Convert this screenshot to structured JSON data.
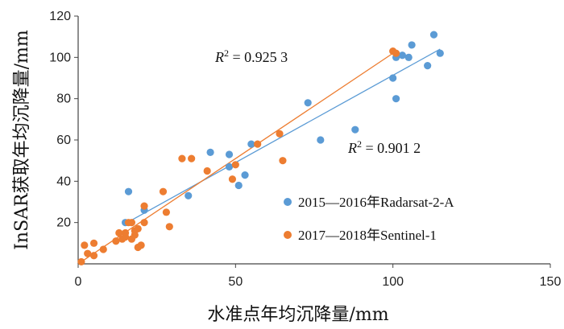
{
  "chart_data": {
    "type": "scatter",
    "xlabel": "水准点年均沉降量/mm",
    "ylabel": "InSAR获取年均沉降量/mm",
    "xlim": [
      0,
      150
    ],
    "ylim": [
      0,
      120
    ],
    "xticks": [
      "0",
      "50",
      "100",
      "150"
    ],
    "yticks": [
      "20",
      "40",
      "60",
      "80",
      "100",
      "120"
    ],
    "grid": false,
    "legend_position": "bottom-right",
    "series": [
      {
        "name": "2015—2016年Radarsat-2-A",
        "color": "#5b9bd5",
        "r2_label": "R² = 0.901 2",
        "trendline": [
          [
            15,
            19.5
          ],
          [
            115,
            104
          ]
        ],
        "points": [
          [
            15,
            20
          ],
          [
            16,
            35
          ],
          [
            21,
            26
          ],
          [
            35,
            33
          ],
          [
            42,
            54
          ],
          [
            48,
            47
          ],
          [
            48,
            53
          ],
          [
            51,
            38
          ],
          [
            53,
            43
          ],
          [
            55,
            58
          ],
          [
            73,
            78
          ],
          [
            77,
            60
          ],
          [
            88,
            65
          ],
          [
            100,
            90
          ],
          [
            101,
            80
          ],
          [
            101,
            100
          ],
          [
            103,
            101
          ],
          [
            105,
            100
          ],
          [
            106,
            106
          ],
          [
            111,
            96
          ],
          [
            113,
            111
          ],
          [
            115,
            102
          ]
        ]
      },
      {
        "name": "2017—2018年Sentinel-1",
        "color": "#ed7d31",
        "r2_label": "R² = 0.925 3",
        "trendline": [
          [
            1,
            1
          ],
          [
            101,
            103
          ]
        ],
        "points": [
          [
            2,
            9
          ],
          [
            3,
            5
          ],
          [
            5,
            10
          ],
          [
            5,
            4
          ],
          [
            8,
            7
          ],
          [
            12,
            11
          ],
          [
            13,
            15
          ],
          [
            14,
            12
          ],
          [
            15,
            15
          ],
          [
            15,
            13
          ],
          [
            16,
            20
          ],
          [
            17,
            12
          ],
          [
            17,
            20
          ],
          [
            18,
            14
          ],
          [
            18,
            16
          ],
          [
            19,
            17
          ],
          [
            19,
            8
          ],
          [
            20,
            9
          ],
          [
            21,
            20
          ],
          [
            21,
            28
          ],
          [
            27,
            35
          ],
          [
            28,
            25
          ],
          [
            29,
            18
          ],
          [
            33,
            51
          ],
          [
            36,
            51
          ],
          [
            41,
            45
          ],
          [
            49,
            41
          ],
          [
            50,
            48
          ],
          [
            57,
            58
          ],
          [
            64,
            63
          ],
          [
            65,
            50
          ],
          [
            100,
            103
          ],
          [
            101,
            102
          ],
          [
            1,
            1
          ]
        ]
      }
    ]
  }
}
